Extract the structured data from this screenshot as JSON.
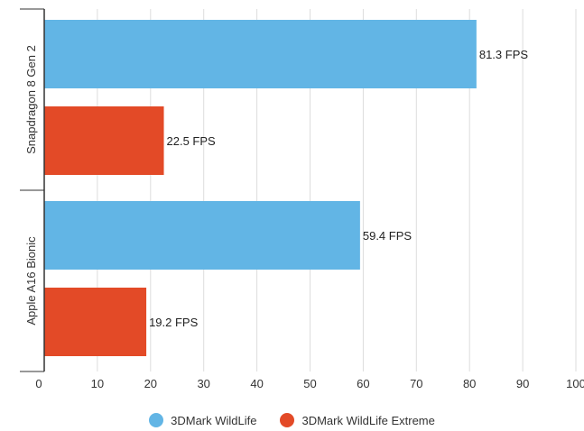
{
  "chart_data": {
    "type": "bar",
    "orientation": "horizontal",
    "categories": [
      "Snapdragon 8 Gen 2",
      "Apple A16 Bionic"
    ],
    "series": [
      {
        "name": "3DMark WildLife",
        "color": "#62b5e5",
        "values": [
          81.3,
          59.4
        ],
        "labels": [
          "81.3 FPS",
          "59.4 FPS"
        ]
      },
      {
        "name": "3DMark WildLife Extreme",
        "color": "#e34a27",
        "values": [
          22.5,
          19.2
        ],
        "labels": [
          "22.5 FPS",
          "19.2 FPS"
        ]
      }
    ],
    "xlim": [
      0,
      100
    ],
    "x_ticks": [
      0,
      10,
      20,
      30,
      40,
      50,
      60,
      70,
      80,
      90,
      100
    ],
    "grid": "vertical",
    "legend": "bottom-center",
    "title": "",
    "xlabel": "",
    "ylabel": ""
  }
}
